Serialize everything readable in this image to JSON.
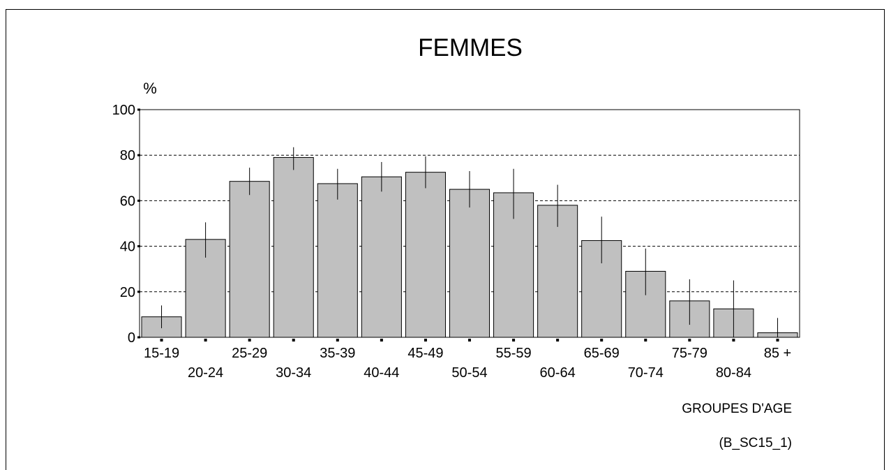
{
  "chart_data": {
    "type": "bar",
    "title": "FEMMES",
    "ylabel": "%",
    "xlabel": "GROUPES D'AGE",
    "source_code": "(B_SC15_1)",
    "ylim": [
      0,
      100
    ],
    "yticks": [
      0,
      20,
      40,
      60,
      80,
      100
    ],
    "grid": "horizontal dashed",
    "categories": [
      "15-19",
      "20-24",
      "25-29",
      "30-34",
      "35-39",
      "40-44",
      "45-49",
      "50-54",
      "55-59",
      "60-64",
      "65-69",
      "70-74",
      "75-79",
      "80-84",
      "85 +"
    ],
    "values": [
      9,
      43,
      68.5,
      79,
      67.5,
      70.5,
      72.5,
      65,
      63.5,
      58,
      42.5,
      29,
      16,
      12.5,
      2
    ],
    "error_low": [
      4,
      35,
      62.5,
      73.5,
      60.5,
      64,
      65.5,
      57,
      52,
      48.5,
      32.5,
      18.5,
      5.5,
      0,
      0
    ],
    "error_high": [
      14,
      50.5,
      74.5,
      83.5,
      74,
      77,
      79.5,
      73,
      74,
      67,
      53,
      39,
      25.5,
      25,
      8.5
    ],
    "colors": {
      "bar": "#c0c0c0",
      "edge": "#000000"
    }
  }
}
